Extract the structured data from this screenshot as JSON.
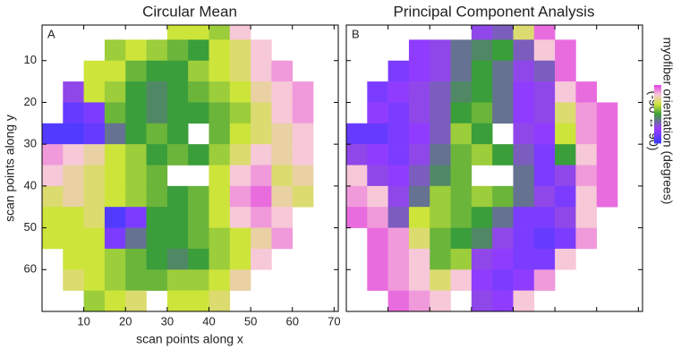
{
  "chart_data": [
    {
      "type": "heatmap",
      "title": "Circular Mean",
      "panel_label": "A",
      "xlabel": "scan points along x",
      "ylabel": "scan points along y",
      "xlim": [
        0,
        71
      ],
      "ylim": [
        1.5,
        70
      ],
      "y_inverted": true,
      "tick_labels": true,
      "xticks": [
        10,
        20,
        30,
        40,
        50,
        60,
        70
      ],
      "yticks": [
        10,
        20,
        30,
        40,
        50,
        60
      ],
      "xbins": [
        0,
        5,
        10,
        15,
        20,
        25,
        30,
        35,
        40,
        45,
        50,
        55,
        60,
        65,
        70
      ],
      "ybins": [
        0,
        5,
        10,
        15,
        20,
        25,
        30,
        35,
        40,
        45,
        50,
        55,
        60,
        65,
        70
      ],
      "values": [
        [
          null,
          null,
          null,
          null,
          null,
          null,
          30,
          30,
          20,
          60,
          null,
          null,
          null,
          null
        ],
        [
          null,
          null,
          null,
          20,
          30,
          20,
          10,
          0,
          30,
          40,
          60,
          null,
          null,
          null
        ],
        [
          null,
          null,
          30,
          30,
          10,
          0,
          0,
          20,
          30,
          40,
          60,
          70,
          null,
          null
        ],
        [
          null,
          -40,
          30,
          20,
          0,
          -10,
          0,
          10,
          20,
          30,
          50,
          60,
          70,
          null
        ],
        [
          null,
          -70,
          -60,
          10,
          0,
          -10,
          0,
          0,
          10,
          20,
          40,
          60,
          70,
          null
        ],
        [
          -80,
          -80,
          -70,
          -20,
          0,
          10,
          0,
          null,
          10,
          30,
          40,
          50,
          60,
          null
        ],
        [
          70,
          60,
          50,
          30,
          20,
          0,
          10,
          0,
          20,
          40,
          60,
          50,
          60,
          null
        ],
        [
          60,
          50,
          40,
          30,
          20,
          10,
          null,
          null,
          30,
          60,
          70,
          40,
          50,
          null
        ],
        [
          40,
          50,
          40,
          30,
          20,
          10,
          0,
          10,
          30,
          70,
          80,
          50,
          40,
          null
        ],
        [
          30,
          30,
          40,
          -80,
          -60,
          0,
          0,
          10,
          30,
          60,
          70,
          60,
          null,
          null
        ],
        [
          30,
          30,
          30,
          -60,
          -20,
          0,
          0,
          10,
          20,
          30,
          50,
          70,
          null,
          null
        ],
        [
          null,
          30,
          30,
          20,
          10,
          0,
          -10,
          0,
          20,
          30,
          60,
          null,
          null,
          null
        ],
        [
          null,
          40,
          30,
          20,
          10,
          10,
          20,
          20,
          30,
          50,
          null,
          null,
          null,
          null
        ],
        [
          null,
          null,
          20,
          30,
          40,
          null,
          30,
          30,
          40,
          null,
          null,
          null,
          null,
          null
        ]
      ]
    },
    {
      "type": "heatmap",
      "title": "Principal Component Analysis",
      "panel_label": "B",
      "xlim": [
        0,
        71
      ],
      "ylim": [
        1.5,
        70
      ],
      "y_inverted": true,
      "tick_labels": false,
      "xticks": [
        10,
        20,
        30,
        40,
        50,
        60,
        70
      ],
      "yticks": [
        10,
        20,
        30,
        40,
        50,
        60
      ],
      "xbins": [
        0,
        5,
        10,
        15,
        20,
        25,
        30,
        35,
        40,
        45,
        50,
        55,
        60,
        65,
        70
      ],
      "ybins": [
        0,
        5,
        10,
        15,
        20,
        25,
        30,
        35,
        40,
        45,
        50,
        55,
        60,
        65,
        70
      ],
      "values": [
        [
          null,
          null,
          null,
          null,
          null,
          null,
          -40,
          -30,
          40,
          80,
          null,
          null,
          null,
          null
        ],
        [
          null,
          null,
          null,
          -50,
          -40,
          -20,
          -10,
          0,
          -30,
          60,
          80,
          null,
          null,
          null
        ],
        [
          null,
          null,
          -60,
          -50,
          -40,
          -20,
          0,
          -20,
          -40,
          -30,
          80,
          null,
          null,
          null
        ],
        [
          null,
          -60,
          -50,
          -40,
          -30,
          -10,
          0,
          -20,
          -50,
          -40,
          60,
          80,
          null,
          null
        ],
        [
          null,
          -50,
          -60,
          -40,
          -30,
          0,
          10,
          -20,
          -50,
          -40,
          40,
          70,
          80,
          null
        ],
        [
          -70,
          -70,
          -60,
          -50,
          -30,
          20,
          0,
          null,
          -40,
          -50,
          30,
          70,
          80,
          null
        ],
        [
          -40,
          -50,
          -60,
          -40,
          -20,
          10,
          20,
          0,
          -30,
          -60,
          0,
          60,
          80,
          null
        ],
        [
          60,
          -40,
          -50,
          -30,
          -10,
          10,
          null,
          null,
          -20,
          -60,
          -40,
          70,
          80,
          null
        ],
        [
          70,
          60,
          -40,
          -20,
          20,
          10,
          20,
          10,
          -20,
          -40,
          -60,
          60,
          80,
          null
        ],
        [
          80,
          70,
          -30,
          30,
          20,
          10,
          0,
          -20,
          -60,
          -60,
          -40,
          60,
          null,
          null
        ],
        [
          null,
          80,
          70,
          40,
          10,
          0,
          -10,
          -40,
          -60,
          -70,
          -60,
          70,
          null,
          null
        ],
        [
          null,
          80,
          70,
          60,
          10,
          20,
          -40,
          -50,
          -60,
          -60,
          60,
          null,
          null,
          null
        ],
        [
          null,
          80,
          70,
          60,
          40,
          60,
          -50,
          -60,
          -50,
          70,
          null,
          null,
          null,
          null
        ],
        [
          null,
          null,
          80,
          70,
          60,
          null,
          -40,
          -50,
          60,
          null,
          null,
          null,
          null,
          null
        ]
      ],
      "colorbar": {
        "label": "myofiber orientation (degrees)",
        "range_label": "(-90 ↔ 90)",
        "colorscale": [
          [
            -90,
            "#3b3bff"
          ],
          [
            -45,
            "#9b3cff"
          ],
          [
            0,
            "#3a9e3a"
          ],
          [
            30,
            "#cde43a"
          ],
          [
            60,
            "#f7c8d8"
          ],
          [
            90,
            "#e23ee2"
          ]
        ]
      }
    }
  ]
}
